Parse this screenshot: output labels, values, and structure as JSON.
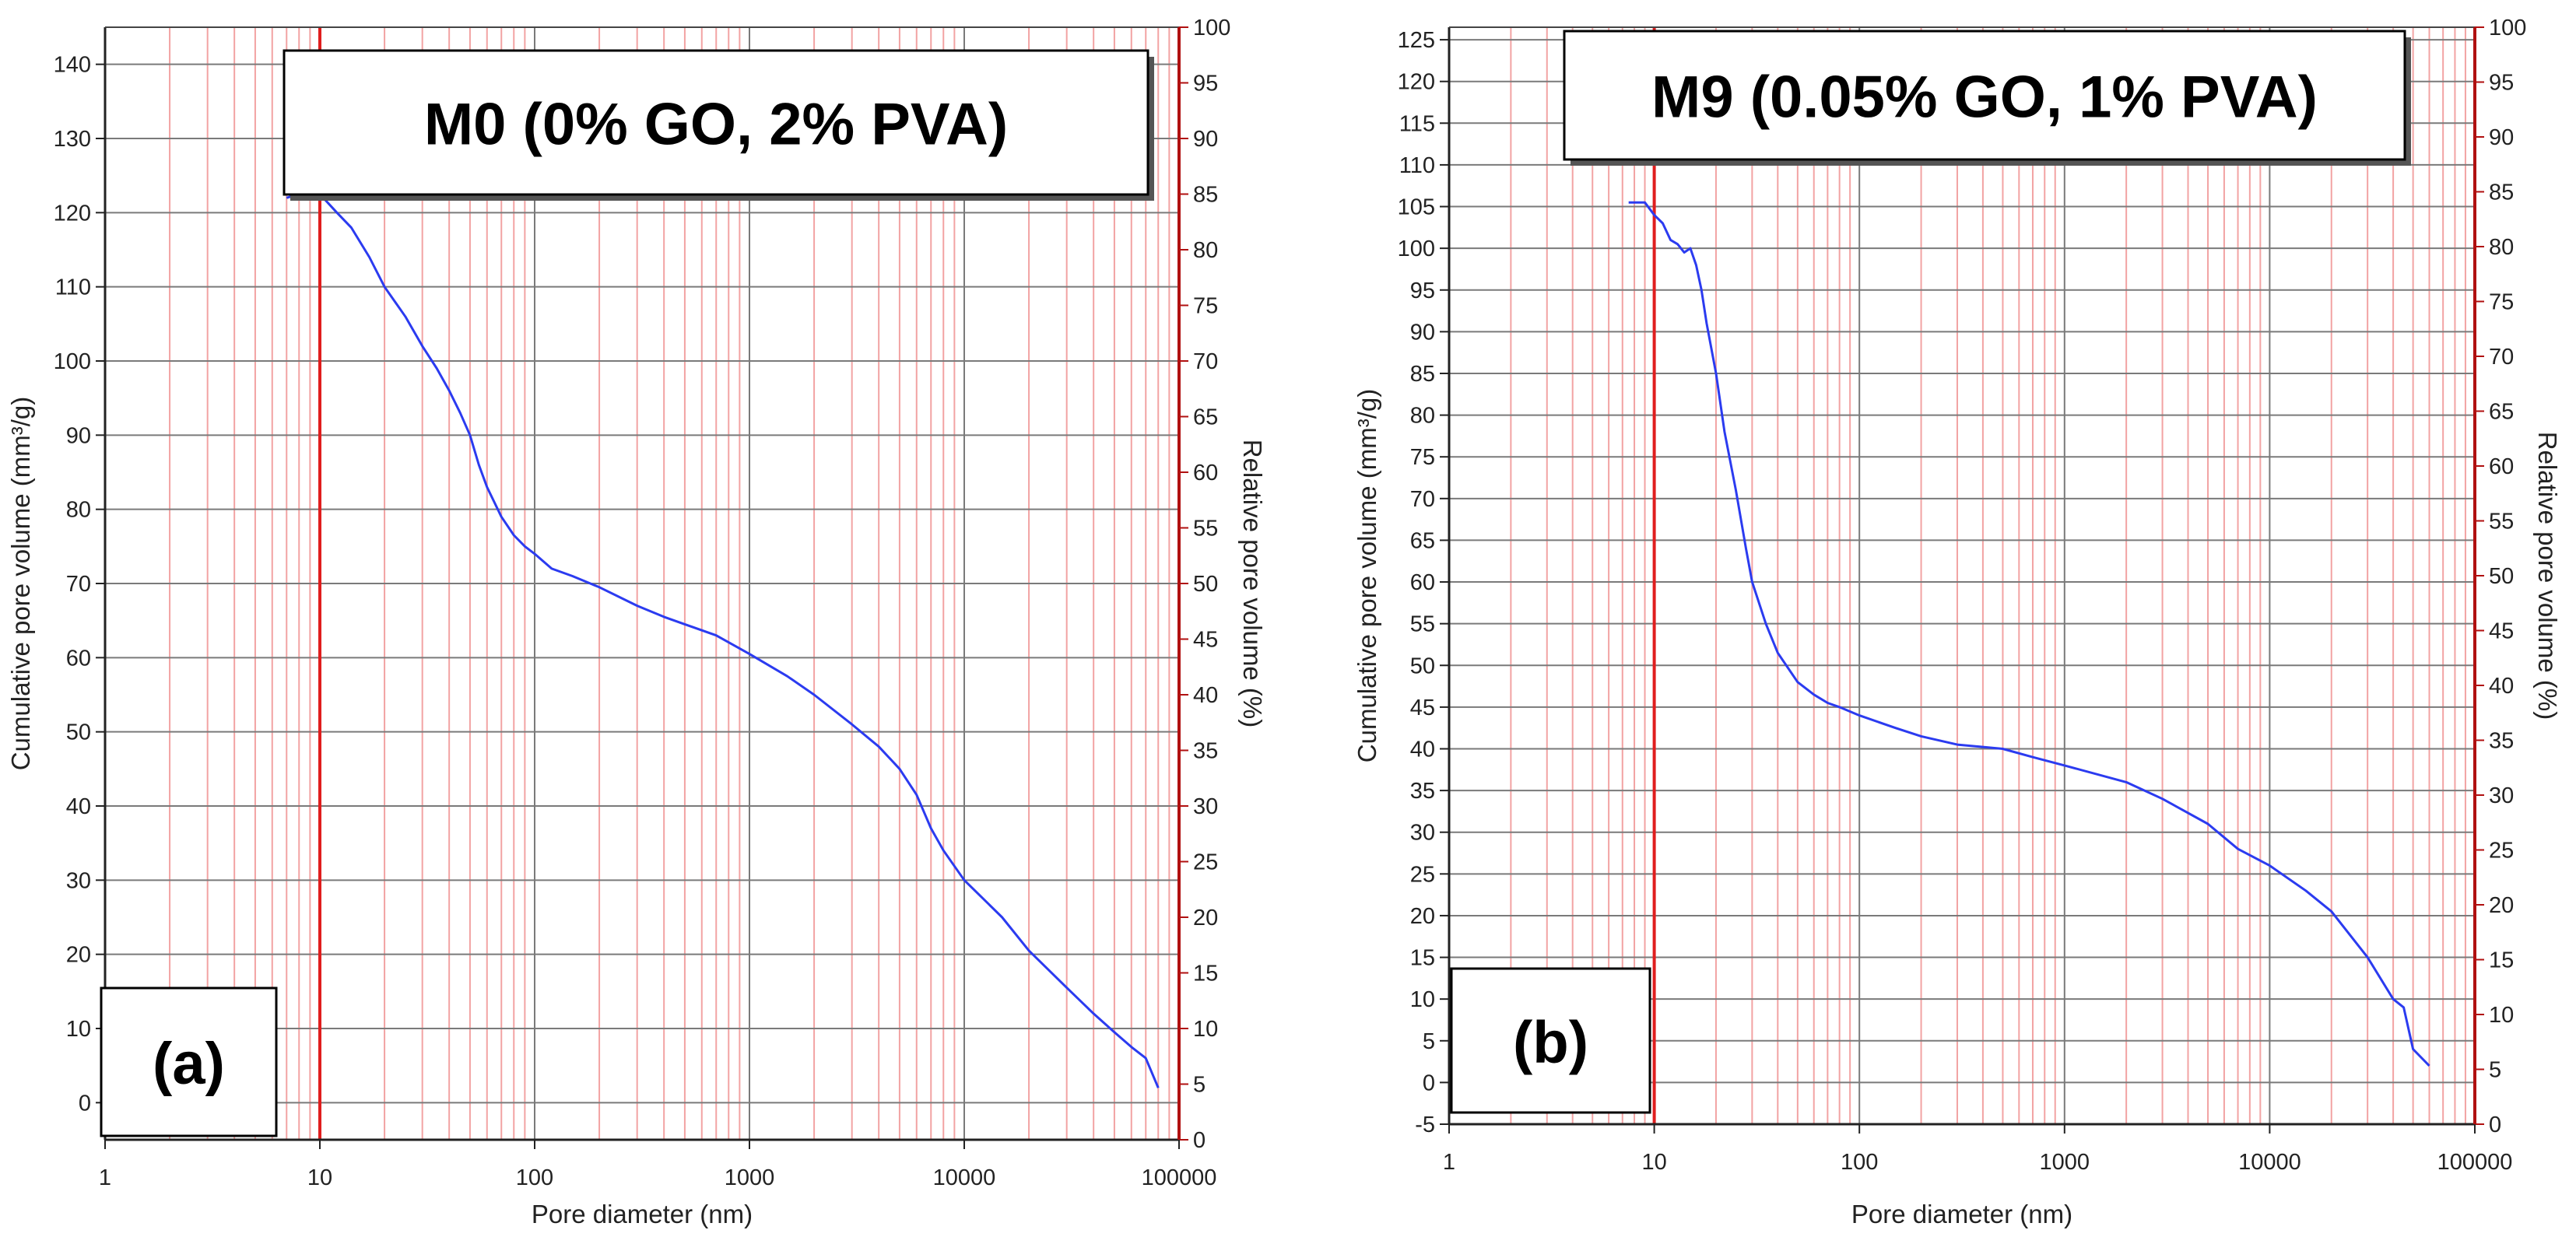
{
  "chart_data": [
    {
      "type": "line",
      "panel_label": "(a)",
      "title": "M0 (0% GO, 2% PVA)",
      "xlabel": "Pore diameter (nm)",
      "ylabel": "Cumulative pore volume (mm³/g)",
      "y2label": "Relative pore volume (%)",
      "xscale": "log",
      "xlim": [
        1,
        100000
      ],
      "xticks": [
        "1",
        "10",
        "100",
        "1000",
        "10000",
        "100000"
      ],
      "ylim": [
        -5,
        145
      ],
      "yticks": [
        "0",
        "10",
        "20",
        "30",
        "40",
        "50",
        "60",
        "70",
        "80",
        "90",
        "100",
        "110",
        "120",
        "130",
        "140"
      ],
      "y2lim": [
        0,
        100
      ],
      "y2ticks": [
        "0",
        "5",
        "10",
        "15",
        "20",
        "25",
        "30",
        "35",
        "40",
        "45",
        "50",
        "55",
        "60",
        "65",
        "70",
        "75",
        "80",
        "85",
        "90",
        "95",
        "100"
      ],
      "grid": true,
      "marker_x": 10,
      "colors": {
        "line": "#2b3bf0",
        "grid_major": "#7a7a7a",
        "grid_minor": "#f2a3a3",
        "marker": "#e01e1e",
        "right_axis": "#b01010"
      },
      "series": [
        {
          "x": [
            7,
            8,
            9,
            10,
            12,
            14,
            17,
            20,
            25,
            30,
            35,
            40,
            45,
            50,
            55,
            60,
            70,
            80,
            90,
            100,
            120,
            150,
            200,
            300,
            400,
            500,
            700,
            1000,
            1500,
            2000,
            3000,
            4000,
            5000,
            6000,
            7000,
            8000,
            10000,
            15000,
            20000,
            30000,
            40000,
            50000,
            60000,
            70000,
            80000
          ],
          "y": [
            122,
            122.5,
            123,
            122.5,
            120,
            118,
            114,
            110,
            106,
            102,
            99,
            96,
            93,
            90,
            86,
            83,
            79,
            76.5,
            75,
            74,
            72,
            71,
            69.5,
            67,
            65.5,
            64.5,
            63,
            60.5,
            57.5,
            55,
            51,
            48,
            45,
            41.5,
            37,
            34,
            30,
            25,
            20.5,
            15.5,
            12,
            9.5,
            7.5,
            6,
            2
          ]
        }
      ]
    },
    {
      "type": "line",
      "panel_label": "(b)",
      "title": "M9 (0.05% GO, 1% PVA)",
      "xlabel": "Pore diameter (nm)",
      "ylabel": "Cumulative pore volume (mm³/g)",
      "y2label": "Relative pore volume (%)",
      "xscale": "log",
      "xlim": [
        1,
        100000
      ],
      "xticks": [
        "1",
        "10",
        "100",
        "1000",
        "10000",
        "100000"
      ],
      "ylim": [
        -5,
        126.5
      ],
      "yticks": [
        "-5",
        "0",
        "5",
        "10",
        "15",
        "20",
        "25",
        "30",
        "35",
        "40",
        "45",
        "50",
        "55",
        "60",
        "65",
        "70",
        "75",
        "80",
        "85",
        "90",
        "95",
        "100",
        "105",
        "110",
        "115",
        "120",
        "125"
      ],
      "y2lim": [
        0,
        100
      ],
      "y2ticks": [
        "0",
        "5",
        "10",
        "15",
        "20",
        "25",
        "30",
        "35",
        "40",
        "45",
        "50",
        "55",
        "60",
        "65",
        "70",
        "75",
        "80",
        "85",
        "90",
        "95",
        "100"
      ],
      "grid": true,
      "marker_x": 10,
      "colors": {
        "line": "#2b3bf0",
        "grid_major": "#7a7a7a",
        "grid_minor": "#f2a3a3",
        "marker": "#e01e1e",
        "right_axis": "#b01010"
      },
      "series": [
        {
          "x": [
            7.5,
            9,
            10,
            11,
            12,
            13,
            14,
            15,
            16,
            17,
            18,
            20,
            22,
            25,
            28,
            30,
            35,
            40,
            50,
            60,
            70,
            80,
            100,
            150,
            200,
            300,
            500,
            700,
            1000,
            2000,
            3000,
            5000,
            7000,
            10000,
            15000,
            20000,
            30000,
            40000,
            45000,
            50000,
            60000
          ],
          "y": [
            105.5,
            105.5,
            104,
            103,
            101,
            100.5,
            99.5,
            100,
            98,
            95,
            91,
            85,
            78,
            71,
            64,
            60,
            55,
            51.5,
            48,
            46.5,
            45.5,
            45,
            44,
            42.5,
            41.5,
            40.5,
            40,
            39,
            38,
            36,
            34,
            31,
            28,
            26,
            23,
            20.5,
            15,
            10,
            9,
            4,
            2
          ]
        }
      ]
    }
  ]
}
